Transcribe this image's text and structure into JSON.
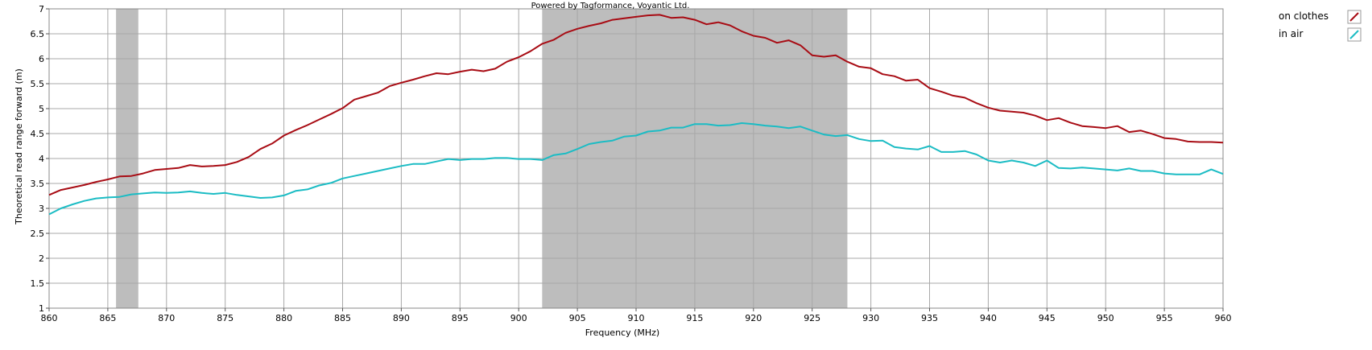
{
  "credit": "Powered by Tagformance, Voyantic Ltd.",
  "colors": {
    "on_clothes": "#a80c14",
    "in_air": "#1bbcc4",
    "band": "#bdbdbd",
    "grid": "#a8a8a8"
  },
  "chart_data": {
    "type": "line",
    "xlabel": "Frequency (MHz)",
    "ylabel": "Theoretical read range forward (m)",
    "xlim": [
      860,
      960
    ],
    "ylim": [
      1,
      7
    ],
    "xticks": [
      860,
      865,
      870,
      875,
      880,
      885,
      890,
      895,
      900,
      905,
      910,
      915,
      920,
      925,
      930,
      935,
      940,
      945,
      950,
      955,
      960
    ],
    "yticks": [
      "1",
      "1.5",
      "2",
      "2.5",
      "3",
      "3.5",
      "4",
      "4.5",
      "5",
      "5.5",
      "6",
      "6.5",
      "7"
    ],
    "grid": true,
    "legend_position": "right",
    "shaded_bands": [
      [
        865.7,
        867.6
      ],
      [
        902,
        928
      ]
    ],
    "x": [
      860,
      861,
      862,
      863,
      864,
      865,
      866,
      867,
      868,
      869,
      870,
      871,
      872,
      873,
      874,
      875,
      876,
      877,
      878,
      879,
      880,
      881,
      882,
      883,
      884,
      885,
      886,
      887,
      888,
      889,
      890,
      891,
      892,
      893,
      894,
      895,
      896,
      897,
      898,
      899,
      900,
      901,
      902,
      903,
      904,
      905,
      906,
      907,
      908,
      909,
      910,
      911,
      912,
      913,
      914,
      915,
      916,
      917,
      918,
      919,
      920,
      921,
      922,
      923,
      924,
      925,
      926,
      927,
      928,
      929,
      930,
      931,
      932,
      933,
      934,
      935,
      936,
      937,
      938,
      939,
      940,
      941,
      942,
      943,
      944,
      945,
      946,
      947,
      948,
      949,
      950,
      951,
      952,
      953,
      954,
      955,
      956,
      957,
      958,
      959,
      960
    ],
    "series": [
      {
        "name": "on clothes",
        "values": [
          3.27,
          3.37,
          3.42,
          3.47,
          3.53,
          3.58,
          3.64,
          3.65,
          3.7,
          3.77,
          3.79,
          3.81,
          3.87,
          3.84,
          3.85,
          3.87,
          3.93,
          4.03,
          4.19,
          4.3,
          4.46,
          4.57,
          4.67,
          4.78,
          4.89,
          5.01,
          5.18,
          5.25,
          5.32,
          5.45,
          5.52,
          5.58,
          5.65,
          5.71,
          5.69,
          5.74,
          5.78,
          5.75,
          5.8,
          5.94,
          6.03,
          6.15,
          6.3,
          6.38,
          6.52,
          6.6,
          6.66,
          6.71,
          6.78,
          6.81,
          6.84,
          6.87,
          6.88,
          6.82,
          6.83,
          6.78,
          6.69,
          6.73,
          6.67,
          6.55,
          6.46,
          6.42,
          6.32,
          6.37,
          6.27,
          6.07,
          6.04,
          6.07,
          5.94,
          5.84,
          5.81,
          5.69,
          5.65,
          5.56,
          5.58,
          5.41,
          5.34,
          5.26,
          5.22,
          5.11,
          5.02,
          4.96,
          4.94,
          4.92,
          4.86,
          4.77,
          4.81,
          4.72,
          4.65,
          4.63,
          4.61,
          4.65,
          4.53,
          4.56,
          4.49,
          4.41,
          4.39,
          4.34,
          4.33,
          4.33,
          4.32
        ]
      },
      {
        "name": "in air",
        "values": [
          2.88,
          3.0,
          3.08,
          3.15,
          3.2,
          3.22,
          3.23,
          3.28,
          3.3,
          3.32,
          3.31,
          3.32,
          3.34,
          3.31,
          3.29,
          3.31,
          3.27,
          3.24,
          3.21,
          3.22,
          3.26,
          3.35,
          3.38,
          3.46,
          3.51,
          3.6,
          3.65,
          3.7,
          3.75,
          3.8,
          3.85,
          3.89,
          3.89,
          3.94,
          3.99,
          3.97,
          3.99,
          3.99,
          4.01,
          4.01,
          3.99,
          3.99,
          3.97,
          4.07,
          4.1,
          4.19,
          4.29,
          4.33,
          4.36,
          4.44,
          4.46,
          4.54,
          4.56,
          4.62,
          4.62,
          4.69,
          4.69,
          4.66,
          4.67,
          4.71,
          4.69,
          4.66,
          4.64,
          4.61,
          4.64,
          4.56,
          4.48,
          4.45,
          4.47,
          4.39,
          4.35,
          4.36,
          4.23,
          4.2,
          4.18,
          4.25,
          4.13,
          4.13,
          4.15,
          4.08,
          3.96,
          3.92,
          3.96,
          3.92,
          3.85,
          3.96,
          3.81,
          3.8,
          3.82,
          3.8,
          3.78,
          3.76,
          3.8,
          3.75,
          3.75,
          3.7,
          3.68,
          3.68,
          3.68,
          3.78,
          3.69
        ]
      }
    ]
  }
}
